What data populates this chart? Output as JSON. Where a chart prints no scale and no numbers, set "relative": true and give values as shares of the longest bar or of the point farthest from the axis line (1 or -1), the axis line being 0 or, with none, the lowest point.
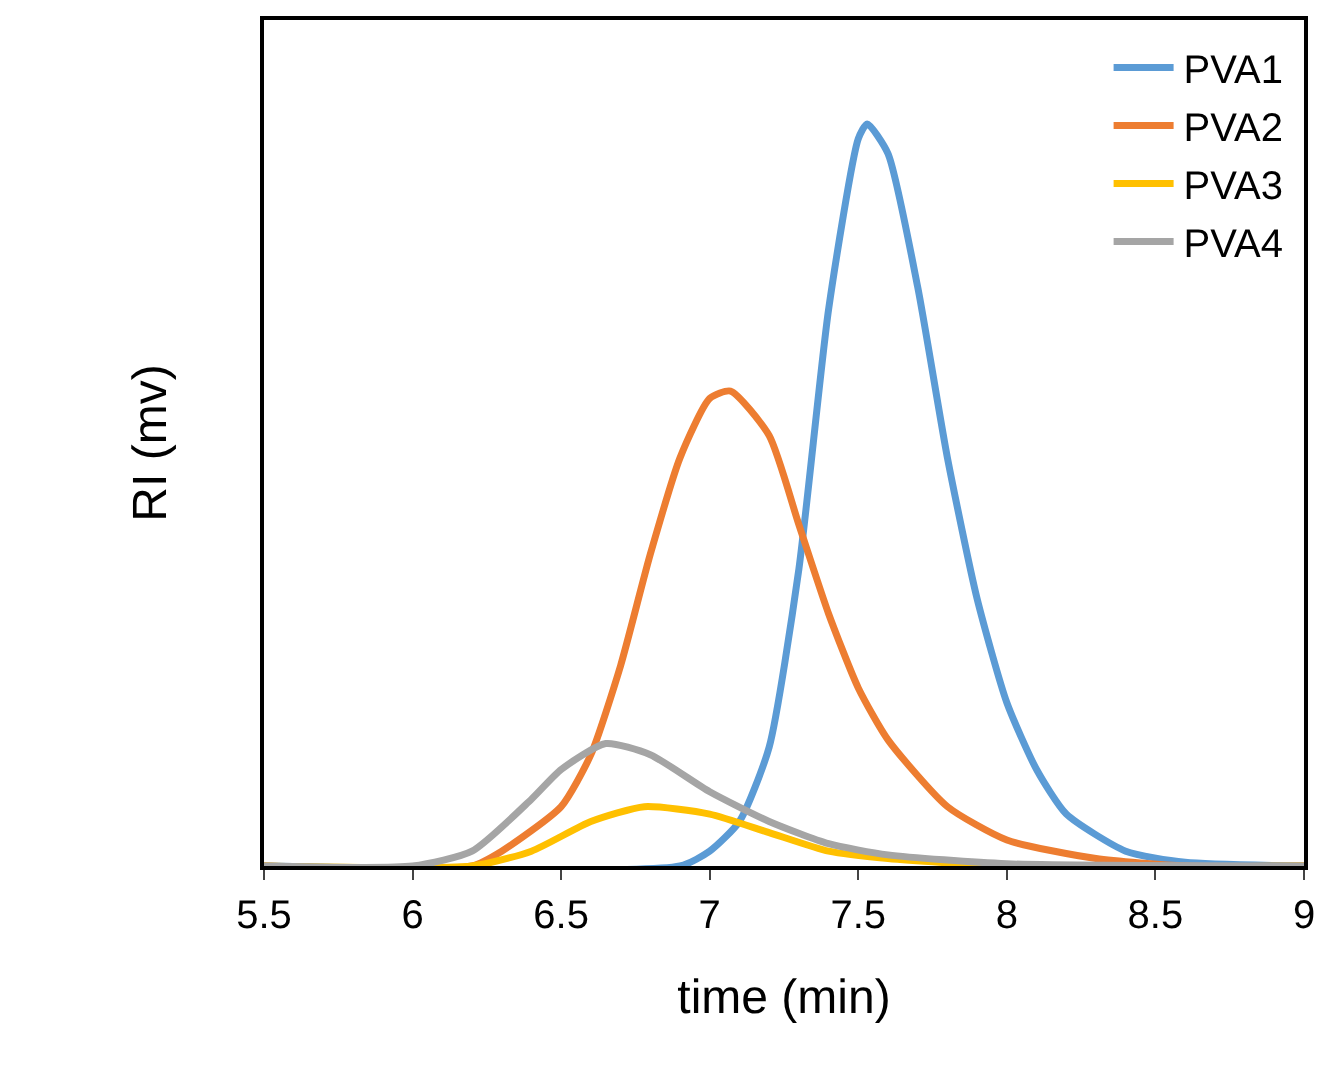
{
  "chart_data": {
    "type": "line",
    "relative": true,
    "xlabel": "time (min)",
    "ylabel": "RI (mv)",
    "xlim": [
      5.5,
      9
    ],
    "xticks": [
      5.5,
      6,
      6.5,
      7,
      7.5,
      8,
      8.5,
      9
    ],
    "grid": false,
    "legend": "top right",
    "marker": "none",
    "line_style": "solid",
    "series": [
      {
        "name": "PVA1",
        "color": "#5b9bd5",
        "x": [
          5.5,
          6.9,
          7.0,
          7.1,
          7.2,
          7.3,
          7.4,
          7.5,
          7.53,
          7.6,
          7.7,
          7.8,
          7.9,
          8.0,
          8.1,
          8.2,
          8.4,
          8.6,
          9
        ],
        "values": [
          0,
          0,
          0.02,
          0.06,
          0.16,
          0.4,
          0.75,
          0.98,
          1,
          0.96,
          0.78,
          0.55,
          0.36,
          0.22,
          0.13,
          0.07,
          0.02,
          0.005,
          0
        ]
      },
      {
        "name": "PVA2",
        "color": "#ed7d31",
        "x": [
          5.5,
          6.2,
          6.3,
          6.5,
          6.6,
          6.7,
          6.8,
          6.9,
          7.0,
          7.07,
          7.2,
          7.3,
          7.4,
          7.5,
          7.6,
          7.8,
          8.0,
          8.3,
          8.6,
          9
        ],
        "values": [
          0,
          0,
          0.02,
          0.08,
          0.15,
          0.27,
          0.42,
          0.55,
          0.63,
          0.64,
          0.58,
          0.46,
          0.34,
          0.24,
          0.17,
          0.08,
          0.035,
          0.01,
          0,
          0
        ]
      },
      {
        "name": "PVA3",
        "color": "#ffc000",
        "x": [
          5.5,
          6.2,
          6.4,
          6.6,
          6.78,
          7.0,
          7.2,
          7.4,
          7.6,
          8.0,
          9
        ],
        "values": [
          0,
          0,
          0.02,
          0.06,
          0.08,
          0.07,
          0.045,
          0.02,
          0.01,
          0,
          0
        ]
      },
      {
        "name": "PVA4",
        "color": "#a5a5a5",
        "x": [
          5.5,
          6.0,
          6.2,
          6.4,
          6.5,
          6.65,
          6.8,
          7.0,
          7.2,
          7.4,
          7.6,
          8.0,
          9
        ],
        "values": [
          0,
          0,
          0.02,
          0.09,
          0.13,
          0.165,
          0.15,
          0.1,
          0.06,
          0.03,
          0.015,
          0.003,
          0
        ]
      }
    ]
  }
}
